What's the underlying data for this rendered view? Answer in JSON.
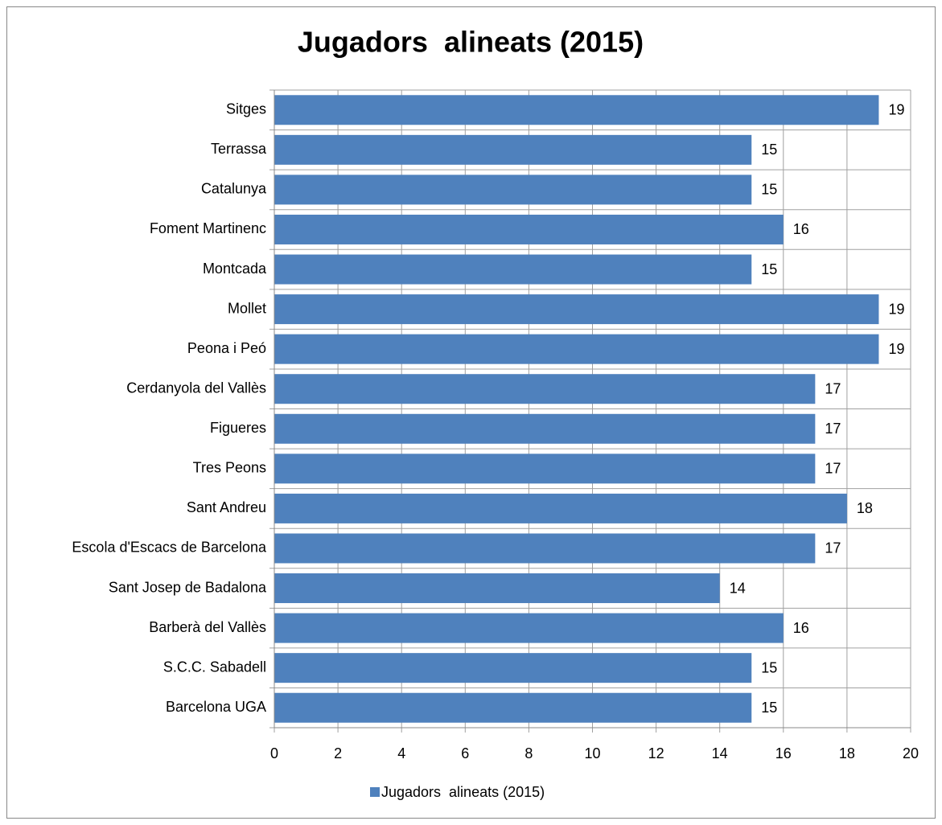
{
  "chart_data": {
    "type": "bar",
    "orientation": "horizontal",
    "title": "Jugadors  alineats (2015)",
    "categories": [
      "Sitges",
      "Terrassa",
      "Catalunya",
      "Foment Martinenc",
      "Montcada",
      "Mollet",
      "Peona i Peó",
      "Cerdanyola del Vallès",
      "Figueres",
      "Tres Peons",
      "Sant Andreu",
      "Escola d'Escacs de Barcelona",
      "Sant Josep de Badalona",
      "Barberà del Vallès",
      "S.C.C. Sabadell",
      "Barcelona UGA"
    ],
    "series": [
      {
        "name": "Jugadors  alineats (2015)",
        "color": "#4f81bd",
        "values": [
          19,
          15,
          15,
          16,
          15,
          19,
          19,
          17,
          17,
          17,
          18,
          17,
          14,
          16,
          15,
          15
        ]
      }
    ],
    "xlim": [
      0,
      20
    ],
    "xticks": [
      0,
      2,
      4,
      6,
      8,
      10,
      12,
      14,
      16,
      18,
      20
    ],
    "grid": true,
    "legend": "bottom"
  }
}
